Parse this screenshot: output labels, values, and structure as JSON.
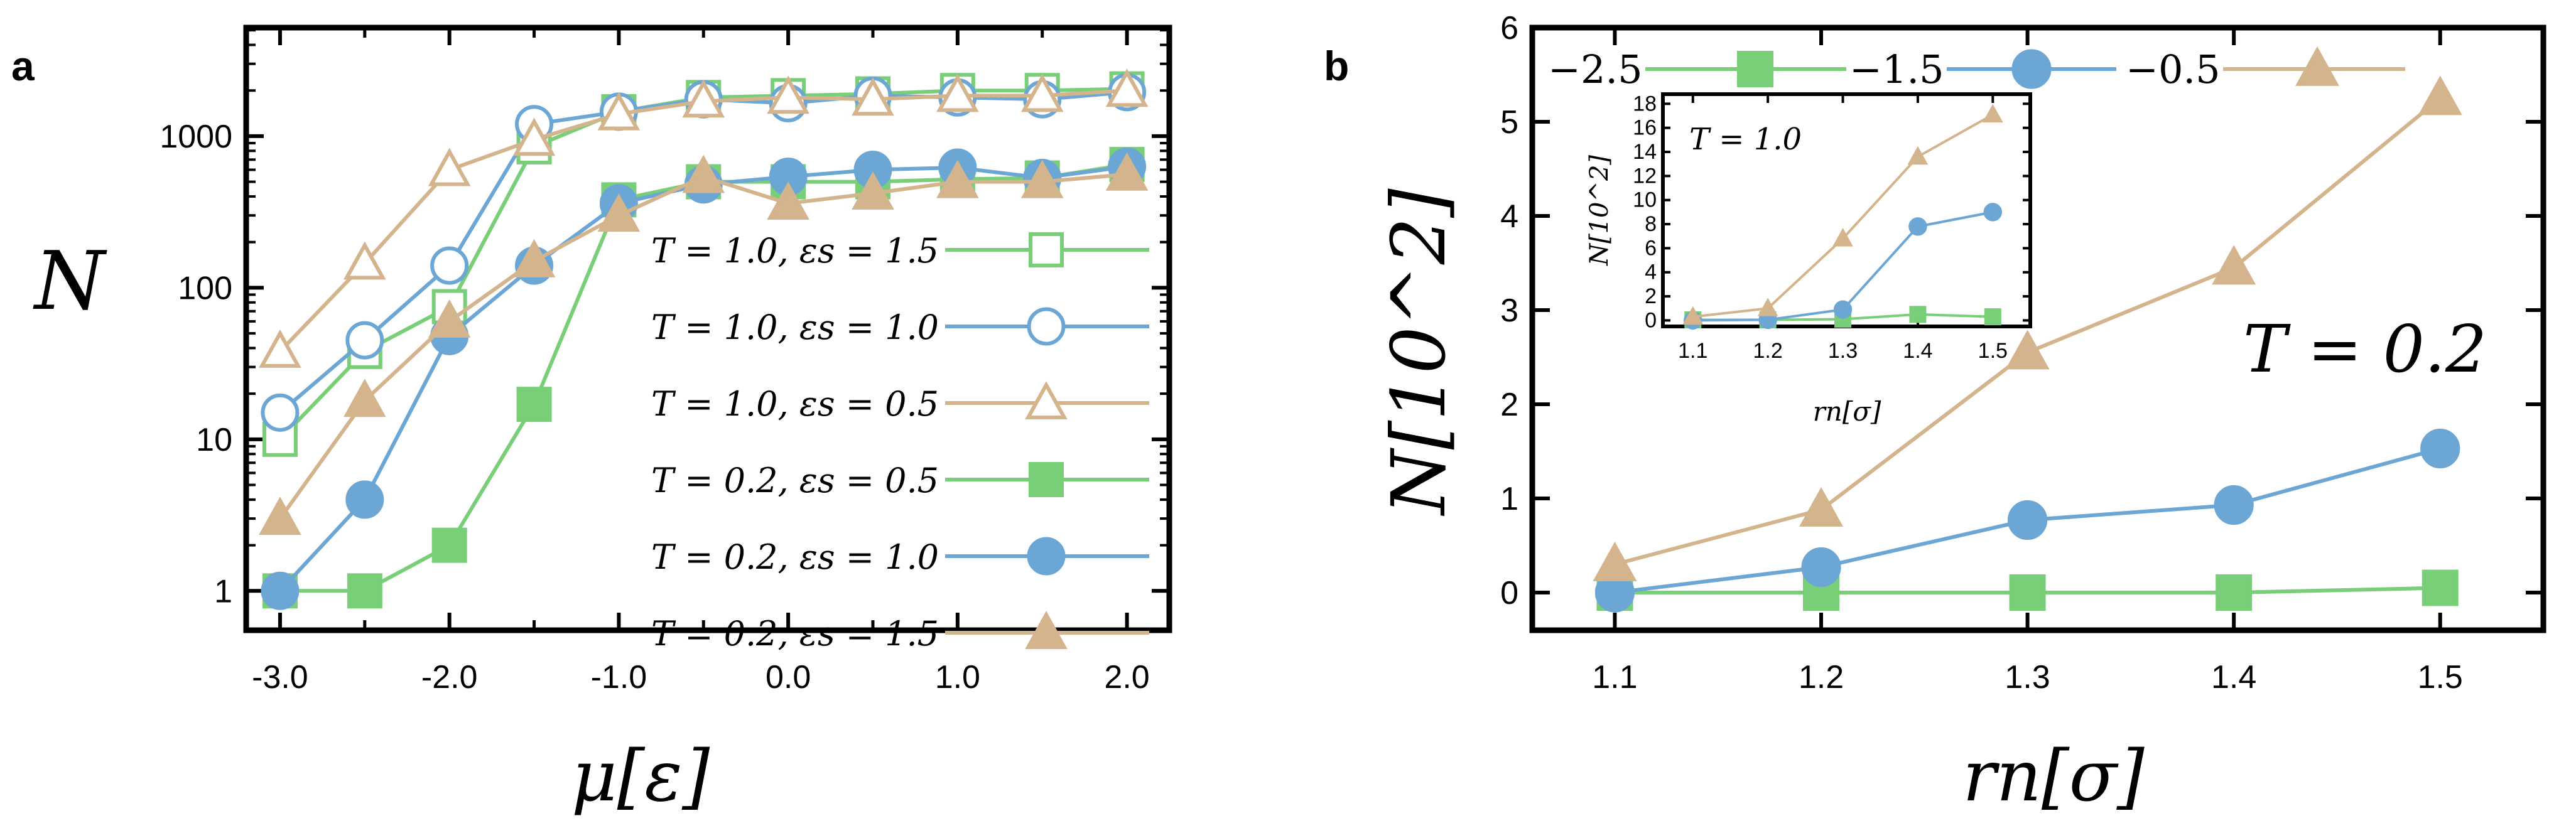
{
  "figure": {
    "panels": [
      "a",
      "b"
    ]
  },
  "chart_data": [
    {
      "panel": "a",
      "type": "line",
      "yscale": "log",
      "xlabel": "μ[ε]",
      "ylabel": "N",
      "xlim": [
        -3.2,
        2.25
      ],
      "ylim": [
        0.55,
        5200
      ],
      "x": [
        -3.0,
        -2.5,
        -2.0,
        -1.5,
        -1.0,
        -0.5,
        0.0,
        0.5,
        1.0,
        1.5,
        2.0
      ],
      "xticks": [
        "-3.0",
        "-2.0",
        "-1.0",
        "0.0",
        "1.0",
        "2.0"
      ],
      "yticks": [
        "1",
        "10",
        "100",
        "1000"
      ],
      "legend_position": "center-right",
      "series": [
        {
          "name": "T = 1.0, εs = 1.5",
          "color": "#79CE78",
          "marker": "square",
          "filled": false,
          "values": [
            10,
            38,
            75,
            850,
            1450,
            1800,
            1850,
            1900,
            2000,
            2000,
            2050
          ]
        },
        {
          "name": "T = 1.0, εs = 1.0",
          "color": "#6BA6D4",
          "marker": "circle",
          "filled": false,
          "values": [
            15,
            45,
            140,
            1200,
            1450,
            1750,
            1650,
            1850,
            1800,
            1750,
            1950
          ]
        },
        {
          "name": "T = 1.0, εs = 0.5",
          "color": "#D4B48C",
          "marker": "triangle",
          "filled": false,
          "values": [
            38,
            145,
            600,
            950,
            1400,
            1700,
            1800,
            1750,
            1850,
            1850,
            2000
          ]
        },
        {
          "name": "T = 0.2, εs = 0.5",
          "color": "#79CE78",
          "marker": "square",
          "filled": true,
          "values": [
            1,
            1,
            2,
            17,
            380,
            500,
            500,
            500,
            520,
            530,
            650
          ]
        },
        {
          "name": "T = 0.2, εs = 1.0",
          "color": "#6BA6D4",
          "marker": "circle",
          "filled": true,
          "values": [
            1,
            4,
            48,
            140,
            360,
            480,
            540,
            600,
            620,
            530,
            630
          ]
        },
        {
          "name": "T = 0.2, εs = 1.5",
          "color": "#D4B48C",
          "marker": "triangle",
          "filled": true,
          "values": [
            3,
            18,
            60,
            150,
            300,
            540,
            360,
            420,
            500,
            500,
            560
          ]
        }
      ]
    },
    {
      "panel": "b",
      "type": "line",
      "xlabel": "rn[σ]",
      "ylabel": "N[10^2]",
      "xlim": [
        1.06,
        1.55
      ],
      "ylim": [
        -0.4,
        6
      ],
      "x": [
        1.1,
        1.2,
        1.3,
        1.4,
        1.5
      ],
      "xticks": [
        "1.1",
        "1.2",
        "1.3",
        "1.4",
        "1.5"
      ],
      "yticks": [
        "0",
        "1",
        "2",
        "3",
        "4",
        "5",
        "6"
      ],
      "annotation": "T = 0.2",
      "legend_position": "top",
      "series": [
        {
          "name": "−2.5",
          "color": "#79CE78",
          "marker": "square",
          "filled": true,
          "values": [
            0.0,
            0.0,
            0.0,
            0.0,
            0.05
          ]
        },
        {
          "name": "−1.5",
          "color": "#6BA6D4",
          "marker": "circle",
          "filled": true,
          "values": [
            0.0,
            0.27,
            0.77,
            0.93,
            1.53
          ]
        },
        {
          "name": "−0.5",
          "color": "#D4B48C",
          "marker": "triangle",
          "filled": true,
          "values": [
            0.3,
            0.88,
            2.55,
            3.45,
            5.25
          ]
        }
      ]
    },
    {
      "panel": "b-inset",
      "type": "line",
      "xlabel": "rn[σ]",
      "ylabel": "N[10^2]",
      "xlim": [
        1.06,
        1.55
      ],
      "ylim": [
        -0.5,
        18.8
      ],
      "x": [
        1.1,
        1.2,
        1.3,
        1.4,
        1.5
      ],
      "xticks": [
        "1.1",
        "1.2",
        "1.3",
        "1.4",
        "1.5"
      ],
      "yticks": [
        "0",
        "2",
        "4",
        "6",
        "8",
        "10",
        "12",
        "14",
        "16",
        "18"
      ],
      "annotation": "T = 1.0",
      "series": [
        {
          "name": "−2.5",
          "color": "#79CE78",
          "marker": "square",
          "filled": true,
          "values": [
            0.05,
            0.05,
            0.1,
            0.5,
            0.3
          ]
        },
        {
          "name": "−1.5",
          "color": "#6BA6D4",
          "marker": "circle",
          "filled": true,
          "values": [
            0.0,
            0.05,
            0.9,
            7.8,
            9.0
          ]
        },
        {
          "name": "−0.5",
          "color": "#D4B48C",
          "marker": "triangle",
          "filled": true,
          "values": [
            0.3,
            1.0,
            6.8,
            13.6,
            17.1
          ]
        }
      ]
    }
  ]
}
